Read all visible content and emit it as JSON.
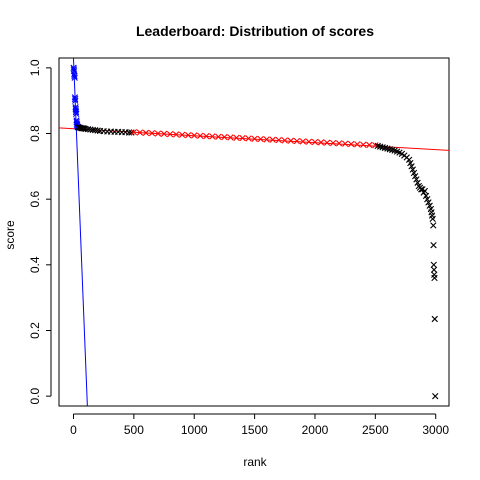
{
  "chart_data": {
    "type": "scatter",
    "title": "Leaderboard: Distribution of scores",
    "xlabel": "rank",
    "ylabel": "score",
    "xlim": [
      -120,
      3110
    ],
    "ylim": [
      -0.03,
      1.03
    ],
    "x_ticks": [
      0,
      500,
      1000,
      1500,
      2000,
      2500,
      3000
    ],
    "y_ticks": [
      0.0,
      0.2,
      0.4,
      0.6,
      0.8,
      1.0
    ],
    "x_tick_labels": [
      "0",
      "500",
      "1000",
      "1500",
      "2000",
      "2500",
      "3000"
    ],
    "y_tick_labels": [
      "0.0",
      "0.2",
      "0.4",
      "0.6",
      "0.8",
      "1.0"
    ],
    "grid": false,
    "marker": "x",
    "series": [
      {
        "color": "#0000ff",
        "points": [
          [
            1,
            1.0
          ],
          [
            3,
            0.995
          ],
          [
            5,
            0.99
          ],
          [
            6,
            0.98
          ],
          [
            8,
            0.975
          ],
          [
            10,
            0.97
          ],
          [
            12,
            0.91
          ],
          [
            14,
            0.905
          ],
          [
            15,
            0.9
          ],
          [
            17,
            0.88
          ],
          [
            18,
            0.875
          ],
          [
            20,
            0.87
          ],
          [
            21,
            0.865
          ],
          [
            23,
            0.86
          ],
          [
            25,
            0.84
          ],
          [
            26,
            0.835
          ],
          [
            28,
            0.83
          ],
          [
            30,
            0.826
          ],
          [
            32,
            0.822
          ],
          [
            35,
            0.82
          ]
        ]
      },
      {
        "color": "#000000",
        "points": [
          [
            40,
            0.819
          ],
          [
            50,
            0.818
          ],
          [
            60,
            0.817
          ],
          [
            70,
            0.816
          ],
          [
            80,
            0.816
          ],
          [
            90,
            0.815
          ],
          [
            100,
            0.814
          ],
          [
            120,
            0.813
          ],
          [
            140,
            0.812
          ],
          [
            160,
            0.811
          ],
          [
            180,
            0.81
          ],
          [
            200,
            0.809
          ],
          [
            220,
            0.808
          ],
          [
            250,
            0.807
          ],
          [
            280,
            0.806
          ],
          [
            310,
            0.806
          ],
          [
            340,
            0.805
          ],
          [
            370,
            0.805
          ],
          [
            400,
            0.804
          ],
          [
            430,
            0.804
          ],
          [
            460,
            0.803
          ],
          [
            480,
            0.803
          ]
        ]
      },
      {
        "color": "#ff0000",
        "points": [
          [
            500,
            0.804
          ],
          [
            550,
            0.803
          ],
          [
            600,
            0.802
          ],
          [
            650,
            0.801
          ],
          [
            700,
            0.8
          ],
          [
            750,
            0.799
          ],
          [
            800,
            0.798
          ],
          [
            850,
            0.797
          ],
          [
            900,
            0.796
          ],
          [
            950,
            0.795
          ],
          [
            1000,
            0.794
          ],
          [
            1050,
            0.793
          ],
          [
            1100,
            0.792
          ],
          [
            1150,
            0.791
          ],
          [
            1200,
            0.79
          ],
          [
            1250,
            0.789
          ],
          [
            1300,
            0.788
          ],
          [
            1350,
            0.787
          ],
          [
            1400,
            0.786
          ],
          [
            1450,
            0.785
          ],
          [
            1500,
            0.784
          ],
          [
            1550,
            0.783
          ],
          [
            1600,
            0.782
          ],
          [
            1650,
            0.781
          ],
          [
            1700,
            0.78
          ],
          [
            1750,
            0.779
          ],
          [
            1800,
            0.778
          ],
          [
            1850,
            0.777
          ],
          [
            1900,
            0.776
          ],
          [
            1950,
            0.775
          ],
          [
            2000,
            0.774
          ],
          [
            2050,
            0.773
          ],
          [
            2100,
            0.772
          ],
          [
            2150,
            0.771
          ],
          [
            2200,
            0.77
          ],
          [
            2250,
            0.769
          ],
          [
            2300,
            0.768
          ],
          [
            2350,
            0.767
          ],
          [
            2400,
            0.766
          ],
          [
            2450,
            0.765
          ],
          [
            2500,
            0.764
          ]
        ]
      },
      {
        "color": "#000000",
        "points": [
          [
            2520,
            0.762
          ],
          [
            2540,
            0.76
          ],
          [
            2560,
            0.758
          ],
          [
            2580,
            0.756
          ],
          [
            2600,
            0.754
          ],
          [
            2620,
            0.752
          ],
          [
            2640,
            0.75
          ],
          [
            2660,
            0.748
          ],
          [
            2680,
            0.745
          ],
          [
            2700,
            0.742
          ],
          [
            2720,
            0.738
          ],
          [
            2740,
            0.733
          ],
          [
            2760,
            0.727
          ],
          [
            2780,
            0.72
          ],
          [
            2790,
            0.71
          ],
          [
            2800,
            0.7
          ],
          [
            2810,
            0.69
          ],
          [
            2820,
            0.68
          ],
          [
            2830,
            0.67
          ],
          [
            2840,
            0.66
          ],
          [
            2850,
            0.65
          ],
          [
            2860,
            0.64
          ],
          [
            2870,
            0.635
          ],
          [
            2880,
            0.63
          ],
          [
            2890,
            0.63
          ],
          [
            2900,
            0.62
          ],
          [
            2910,
            0.625
          ],
          [
            2920,
            0.61
          ],
          [
            2930,
            0.6
          ],
          [
            2940,
            0.59
          ],
          [
            2950,
            0.58
          ],
          [
            2960,
            0.57
          ],
          [
            2965,
            0.56
          ],
          [
            2970,
            0.55
          ],
          [
            2975,
            0.54
          ],
          [
            2980,
            0.52
          ],
          [
            2982,
            0.46
          ],
          [
            2984,
            0.4
          ],
          [
            2986,
            0.385
          ],
          [
            2988,
            0.37
          ],
          [
            2990,
            0.36
          ],
          [
            2992,
            0.235
          ],
          [
            2996,
            0.0
          ]
        ]
      }
    ],
    "lines": [
      {
        "name": "",
        "color": "#ff0000",
        "x": [
          -120,
          3110
        ],
        "y": [
          0.817,
          0.7485
        ]
      },
      {
        "name": "",
        "color": "#0000ff",
        "x": [
          0,
          115
        ],
        "y": [
          1.03,
          -0.03
        ]
      }
    ]
  }
}
